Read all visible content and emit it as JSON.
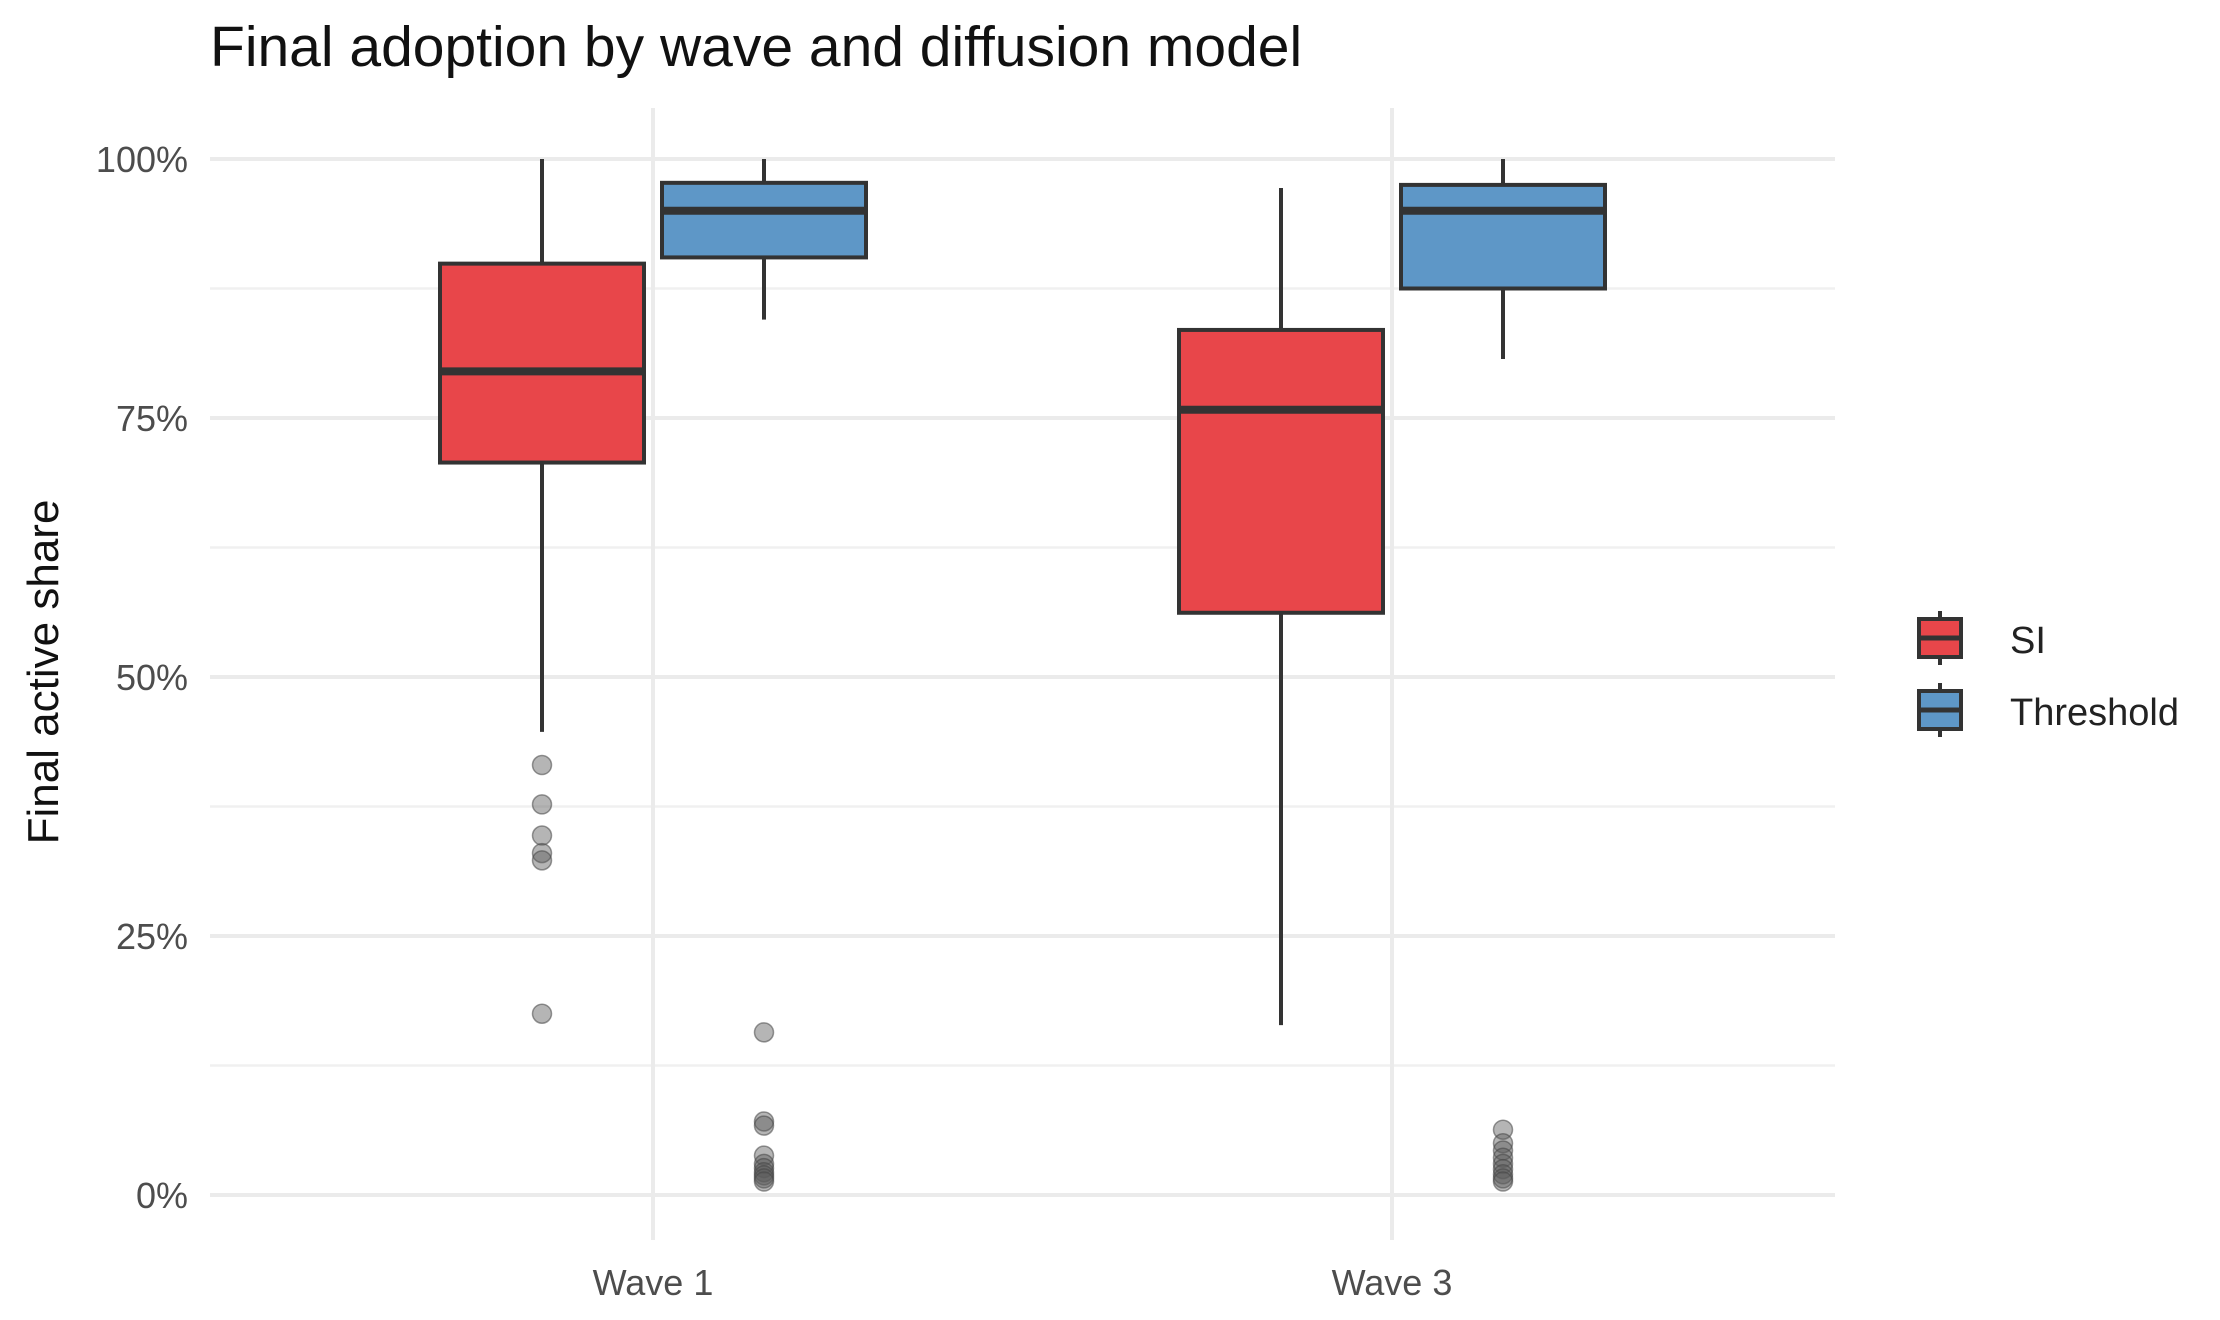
{
  "chart_data": {
    "type": "box",
    "title": "Final adoption by wave and diffusion model",
    "xlabel": "",
    "ylabel": "Final active share",
    "categories": [
      "Wave 1",
      "Wave 3"
    ],
    "ylim": [
      -0.04,
      1.05
    ],
    "y_ticks": [
      0,
      0.25,
      0.5,
      0.75,
      1.0
    ],
    "y_tick_labels": [
      "0%",
      "25%",
      "50%",
      "75%",
      "100%"
    ],
    "grid": true,
    "legend_position": "right",
    "series": [
      {
        "name": "SI",
        "color": "#E41A1C",
        "boxes": [
          {
            "category": "Wave 1",
            "whisker_low": 0.447,
            "q1": 0.707,
            "median": 0.795,
            "q3": 0.899,
            "whisker_high": 1.0,
            "outliers": [
              0.415,
              0.377,
              0.347,
              0.33,
              0.323,
              0.175
            ]
          },
          {
            "category": "Wave 3",
            "whisker_low": 0.164,
            "q1": 0.562,
            "median": 0.758,
            "q3": 0.835,
            "whisker_high": 0.972,
            "outliers": []
          }
        ]
      },
      {
        "name": "Threshold",
        "color": "#377EB8",
        "boxes": [
          {
            "category": "Wave 1",
            "whisker_low": 0.845,
            "q1": 0.905,
            "median": 0.95,
            "q3": 0.977,
            "whisker_high": 1.0,
            "outliers": [
              0.157,
              0.071,
              0.067,
              0.038,
              0.03,
              0.026,
              0.022,
              0.019,
              0.016,
              0.013
            ]
          },
          {
            "category": "Wave 3",
            "whisker_low": 0.807,
            "q1": 0.875,
            "median": 0.95,
            "q3": 0.975,
            "whisker_high": 1.0,
            "outliers": [
              0.063,
              0.05,
              0.043,
              0.036,
              0.03,
              0.025,
              0.02,
              0.016,
              0.013
            ]
          }
        ]
      }
    ]
  }
}
